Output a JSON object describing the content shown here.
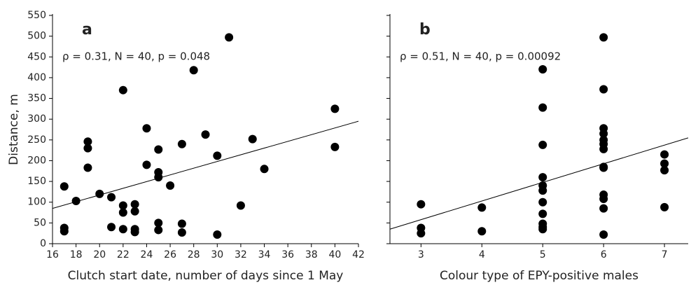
{
  "chart_data": [
    {
      "type": "scatter",
      "panel_label": "a",
      "annotation": "ρ = 0.31, N = 40, p = 0.048",
      "x_label": "Clutch start date, number of days since 1 May",
      "y_label": "Distance, m",
      "xlim": [
        16,
        42
      ],
      "xticks": [
        16,
        18,
        20,
        22,
        24,
        26,
        28,
        30,
        32,
        34,
        36,
        38,
        40,
        42
      ],
      "ylim": [
        0,
        550
      ],
      "yticks": [
        0,
        50,
        100,
        150,
        200,
        250,
        300,
        350,
        400,
        450,
        500,
        550
      ],
      "color": "#000000",
      "x": [
        17,
        17,
        17,
        18,
        19,
        19,
        19,
        20,
        21,
        21,
        22,
        22,
        22,
        22,
        23,
        23,
        23,
        23,
        24,
        24,
        25,
        25,
        25,
        25,
        25,
        26,
        27,
        27,
        27,
        28,
        29,
        30,
        30,
        31,
        32,
        33,
        34,
        40,
        40
      ],
      "y": [
        138,
        38,
        30,
        103,
        246,
        230,
        183,
        120,
        112,
        40,
        370,
        92,
        75,
        35,
        95,
        78,
        35,
        28,
        278,
        190,
        227,
        172,
        160,
        50,
        33,
        140,
        240,
        48,
        27,
        418,
        263,
        212,
        22,
        497,
        92,
        252,
        180,
        325,
        233
      ],
      "fit": {
        "x": [
          16,
          42
        ],
        "y": [
          85,
          295
        ]
      }
    },
    {
      "type": "scatter",
      "panel_label": "b",
      "annotation": "ρ = 0.51, N = 40, p = 0.00092",
      "x_label": "Colour type of EPY-positive males",
      "xlim": [
        2.49,
        7.39
      ],
      "xticks": [
        3,
        4,
        5,
        6,
        7
      ],
      "ylim": [
        0,
        550
      ],
      "yticks": [
        0,
        50,
        100,
        150,
        200,
        250,
        300,
        350,
        400,
        450,
        500,
        550
      ],
      "color": "#000000",
      "x": [
        3,
        3,
        3,
        4,
        4,
        5,
        5,
        5,
        5,
        5,
        5,
        5,
        5,
        5,
        5,
        5,
        6,
        6,
        6,
        6,
        6,
        6,
        6,
        6,
        6,
        6,
        6,
        6,
        6,
        7,
        7,
        7,
        7
      ],
      "y": [
        95,
        38,
        25,
        87,
        30,
        420,
        328,
        238,
        160,
        140,
        128,
        100,
        72,
        48,
        40,
        35,
        497,
        372,
        278,
        265,
        250,
        240,
        228,
        185,
        183,
        118,
        108,
        85,
        22,
        215,
        193,
        177,
        88
      ],
      "fit": {
        "x": [
          2.49,
          7.39
        ],
        "y": [
          35,
          255
        ]
      }
    }
  ]
}
